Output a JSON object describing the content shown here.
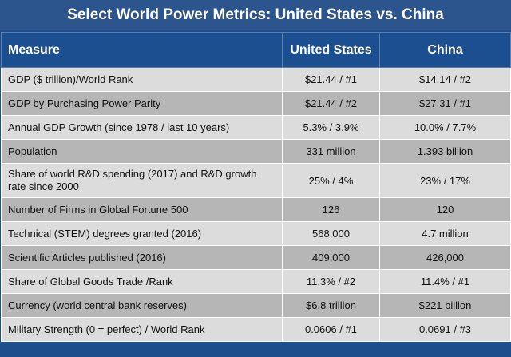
{
  "title": "Select World Power Metrics: United States vs. China",
  "table": {
    "headers": [
      "Measure",
      "United States",
      "China"
    ],
    "rows": [
      {
        "measure": "GDP ($ trillion)/World Rank",
        "us": "$21.44 / #1",
        "china": "$14.14 / #2"
      },
      {
        "measure": "GDP by Purchasing Power Parity",
        "us": "$21.44 / #2",
        "china": "$27.31 / #1"
      },
      {
        "measure": "Annual GDP Growth (since 1978 / last 10 years)",
        "us": "5.3% / 3.9%",
        "china": "10.0% / 7.7%"
      },
      {
        "measure": "Population",
        "us": "331 million",
        "china": "1.393 billion"
      },
      {
        "measure": "Share of world R&D spending (2017) and R&D growth rate since 2000",
        "us": "25% / 4%",
        "china": "23% / 17%"
      },
      {
        "measure": "Number of Firms in Global Fortune 500",
        "us": "126",
        "china": "120"
      },
      {
        "measure": "Technical (STEM) degrees granted (2016)",
        "us": "568,000",
        "china": "4.7 million"
      },
      {
        "measure": "Scientific Articles published (2016)",
        "us": "409,000",
        "china": "426,000"
      },
      {
        "measure": "Share of Global Goods Trade /Rank",
        "us": "11.3% / #2",
        "china": "11.4% / #1"
      },
      {
        "measure": "Currency (world central bank reserves)",
        "us": "$6.8 trillion",
        "china": "$221 billion"
      },
      {
        "measure": "Military Strength (0 = perfect) / World Rank",
        "us": "0.0606 / #1",
        "china": "0.0691 / #3"
      }
    ]
  }
}
